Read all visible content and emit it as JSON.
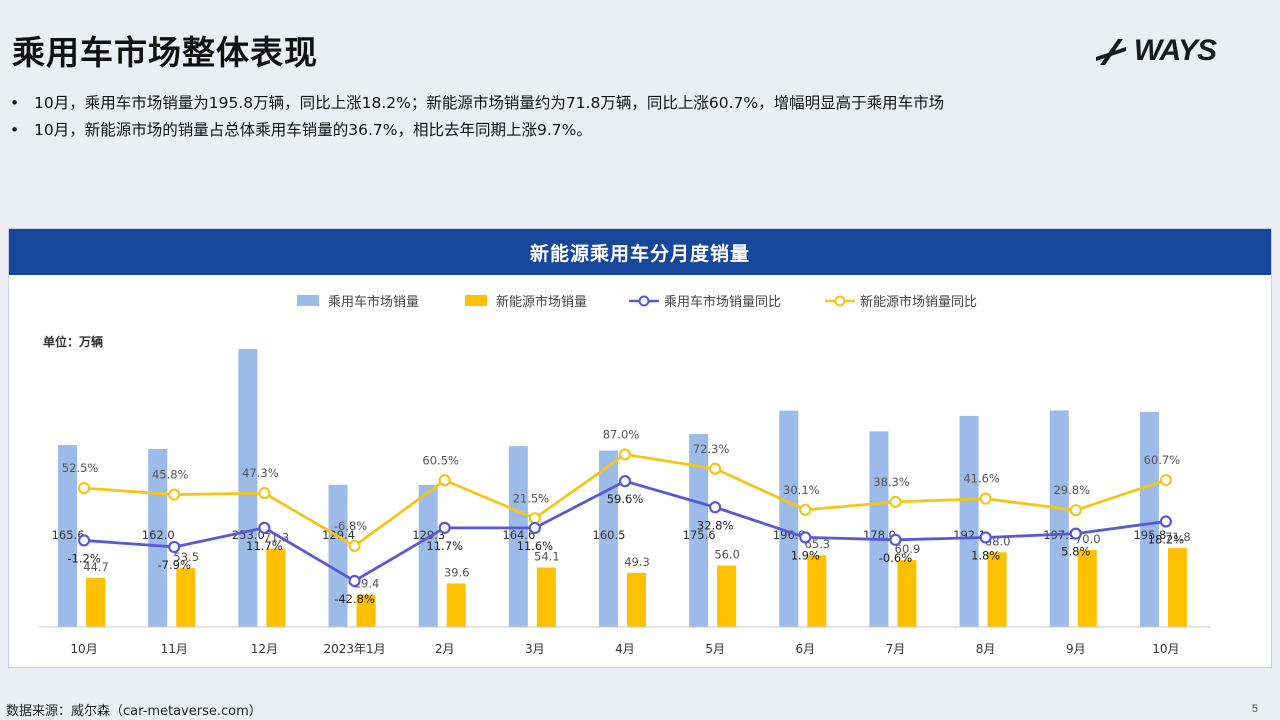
{
  "page": {
    "title": "乘用车市场整体表现",
    "logo_text": "WAYS",
    "bullets": [
      "10月，乘用车市场销量为195.8万辆，同比上涨18.2%；新能源市场销量约为71.8万辆，同比上涨60.7%，增幅明显高于乘用车市场",
      "10月，新能源市场的销量占总体乘用车销量的36.7%，相比去年同期上涨9.7%。"
    ],
    "bullet_marker": "•",
    "footer_source": "数据来源：威尔森（car-metaverse.com）",
    "page_number": "5"
  },
  "colors": {
    "title_bar": "#17479b",
    "passenger_bar": "#9dbbe8",
    "nev_bar": "#ffc000",
    "passenger_yoy_line": "#5b58d8",
    "nev_yoy_line": "#f5c518"
  },
  "chart_data": {
    "type": "bar",
    "title": "新能源乘用车分月度销量",
    "unit_label": "单位：万辆",
    "categories": [
      "10月",
      "11月",
      "12月",
      "2023年1月",
      "2月",
      "3月",
      "4月",
      "5月",
      "6月",
      "7月",
      "8月",
      "9月",
      "10月"
    ],
    "series": [
      {
        "name": "乘用车市场销量",
        "kind": "bar",
        "values": [
          165.6,
          162.0,
          253.0,
          129.4,
          129.3,
          164.6,
          160.5,
          175.6,
          196.9,
          178.0,
          192.1,
          197.1,
          195.8
        ],
        "labels": [
          "165.6",
          "162.0",
          "253.0",
          "129.4",
          "129.3",
          "164.6",
          "160.5",
          "175.6",
          "196.9",
          "178.0",
          "192.1",
          "197.1",
          "195.8"
        ]
      },
      {
        "name": "新能源市场销量",
        "kind": "bar",
        "values": [
          44.7,
          53.5,
          71.3,
          29.4,
          39.6,
          54.1,
          49.3,
          56.0,
          65.3,
          60.9,
          68.0,
          70.0,
          71.8
        ],
        "labels": [
          "44.7",
          "53.5",
          "71.3",
          "29.4",
          "39.6",
          "54.1",
          "49.3",
          "56.0",
          "65.3",
          "60.9",
          "68.0",
          "70.0",
          "71.8"
        ]
      },
      {
        "name": "乘用车市场销量同比",
        "kind": "line",
        "values": [
          -1.2,
          -7.9,
          11.7,
          -42.8,
          11.7,
          11.6,
          59.6,
          32.8,
          1.9,
          -0.6,
          1.8,
          5.8,
          18.2
        ],
        "labels": [
          "-1.2%",
          "-7.9%",
          "11.7%",
          "-42.8%",
          "11.7%",
          "11.6%",
          "59.6%",
          "32.8%",
          "1.9%",
          "-0.6%",
          "1.8%",
          "5.8%",
          "18.2%"
        ]
      },
      {
        "name": "新能源市场销量同比",
        "kind": "line",
        "values": [
          52.5,
          45.8,
          47.3,
          -6.8,
          60.5,
          21.5,
          87.0,
          72.3,
          30.1,
          38.3,
          41.6,
          29.8,
          60.7
        ],
        "labels": [
          "52.5%",
          "45.8%",
          "47.3%",
          "-6.8%",
          "60.5%",
          "21.5%",
          "87.0%",
          "72.3%",
          "30.1%",
          "38.3%",
          "41.6%",
          "29.8%",
          "60.7%"
        ]
      }
    ],
    "bar_axis_range": [
      0,
      280
    ],
    "line_axis_range": [
      -90,
      230
    ],
    "legend_position": "top",
    "grid": false
  }
}
